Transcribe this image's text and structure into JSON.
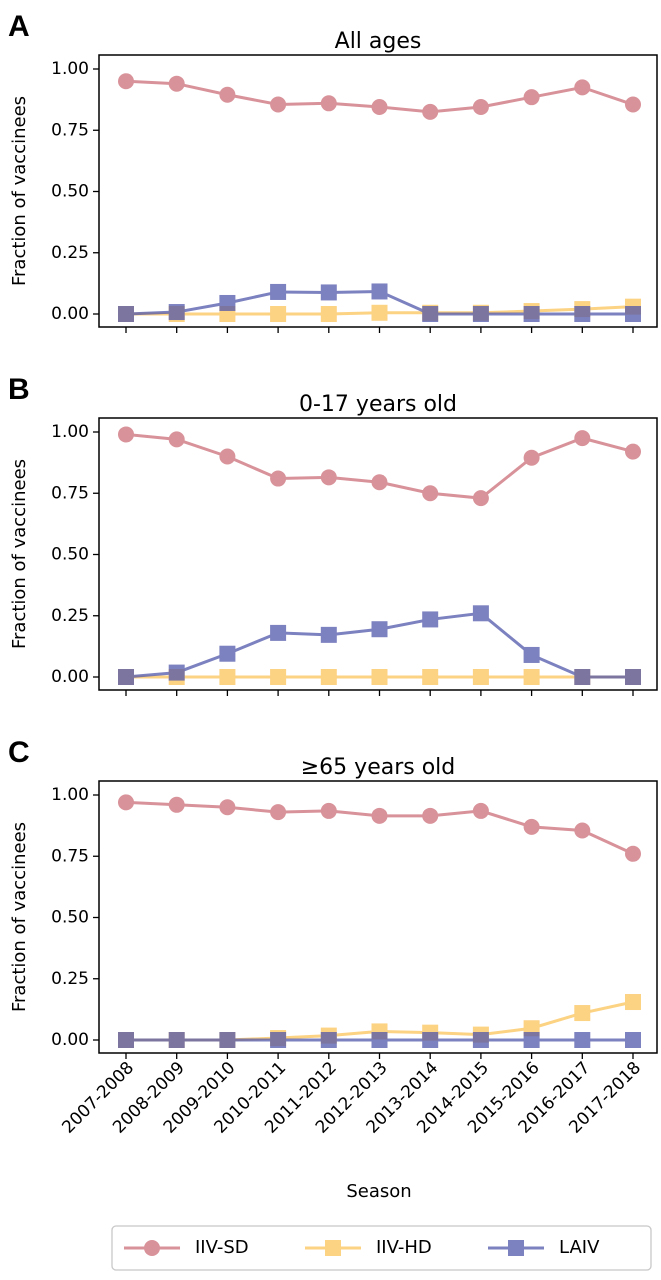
{
  "chart_data": [
    {
      "type": "line",
      "panel": "A",
      "title": "All ages",
      "ylabel": "Fraction of vaccinees",
      "xlabel": "",
      "ylim": [
        0,
        1
      ],
      "yticks": [
        "0.00",
        "0.25",
        "0.50",
        "0.75",
        "1.00"
      ],
      "categories": [
        "2007-2008",
        "2008-2009",
        "2009-2010",
        "2010-2011",
        "2011-2012",
        "2012-2013",
        "2013-2014",
        "2014-2015",
        "2015-2016",
        "2016-2017",
        "2017-2018"
      ],
      "series": [
        {
          "name": "IIV-SD",
          "values": [
            0.95,
            0.94,
            0.895,
            0.855,
            0.86,
            0.845,
            0.825,
            0.845,
            0.885,
            0.925,
            0.855
          ]
        },
        {
          "name": "IIV-HD",
          "values": [
            0.0,
            0.0,
            0.0,
            0.0,
            0.0,
            0.005,
            0.005,
            0.005,
            0.012,
            0.02,
            0.03
          ]
        },
        {
          "name": "LAIV",
          "values": [
            0.0,
            0.008,
            0.045,
            0.09,
            0.088,
            0.092,
            0.0,
            0.0,
            0.0,
            0.0,
            0.0
          ]
        }
      ]
    },
    {
      "type": "line",
      "panel": "B",
      "title": "0-17 years old",
      "ylabel": "Fraction of vaccinees",
      "xlabel": "",
      "ylim": [
        0,
        1
      ],
      "yticks": [
        "0.00",
        "0.25",
        "0.50",
        "0.75",
        "1.00"
      ],
      "categories": [
        "2007-2008",
        "2008-2009",
        "2009-2010",
        "2010-2011",
        "2011-2012",
        "2012-2013",
        "2013-2014",
        "2014-2015",
        "2015-2016",
        "2016-2017",
        "2017-2018"
      ],
      "series": [
        {
          "name": "IIV-SD",
          "values": [
            0.99,
            0.97,
            0.9,
            0.81,
            0.815,
            0.795,
            0.75,
            0.73,
            0.895,
            0.975,
            0.92
          ]
        },
        {
          "name": "IIV-HD",
          "values": [
            0.0,
            0.0,
            0.0,
            0.0,
            0.0,
            0.0,
            0.0,
            0.0,
            0.0,
            0.0,
            0.0
          ]
        },
        {
          "name": "LAIV",
          "values": [
            0.0,
            0.018,
            0.095,
            0.18,
            0.172,
            0.195,
            0.235,
            0.26,
            0.09,
            0.0,
            0.0
          ]
        }
      ]
    },
    {
      "type": "line",
      "panel": "C",
      "title": "≥65 years old",
      "ylabel": "Fraction of vaccinees",
      "xlabel": "Season",
      "ylim": [
        0,
        1
      ],
      "yticks": [
        "0.00",
        "0.25",
        "0.50",
        "0.75",
        "1.00"
      ],
      "categories": [
        "2007-2008",
        "2008-2009",
        "2009-2010",
        "2010-2011",
        "2011-2012",
        "2012-2013",
        "2013-2014",
        "2014-2015",
        "2015-2016",
        "2016-2017",
        "2017-2018"
      ],
      "series": [
        {
          "name": "IIV-SD",
          "values": [
            0.97,
            0.96,
            0.95,
            0.93,
            0.935,
            0.915,
            0.915,
            0.935,
            0.87,
            0.855,
            0.76
          ]
        },
        {
          "name": "IIV-HD",
          "values": [
            0.0,
            0.0,
            0.0,
            0.008,
            0.018,
            0.035,
            0.03,
            0.022,
            0.048,
            0.11,
            0.155
          ]
        },
        {
          "name": "LAIV",
          "values": [
            0.0,
            0.0,
            0.0,
            0.0,
            0.0,
            0.0,
            0.0,
            0.0,
            0.0,
            0.0,
            0.0
          ]
        }
      ]
    }
  ],
  "legend": {
    "placement": "bottom",
    "entries": [
      {
        "label": "IIV-SD",
        "color": "#cc6e78",
        "marker": "circle"
      },
      {
        "label": "IIV-HD",
        "color": "#fbc35a",
        "marker": "square"
      },
      {
        "label": "LAIV",
        "color": "#5157aa",
        "marker": "square"
      }
    ]
  },
  "colors": {
    "IIV-SD": "#cc6e78",
    "IIV-HD": "#fbc35a",
    "LAIV": "#5157aa"
  }
}
